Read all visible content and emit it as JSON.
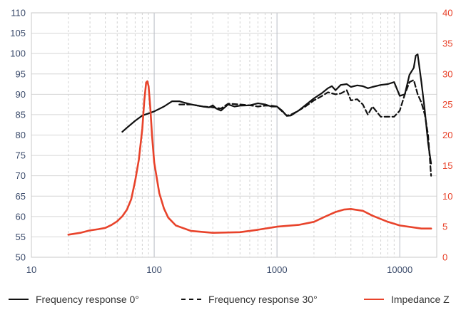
{
  "chart_data": {
    "type": "line",
    "x_scale": "log",
    "xlim": [
      10,
      20000
    ],
    "ylim_left": [
      50,
      110
    ],
    "ylim_right": [
      0,
      40
    ],
    "x_ticks": [
      "10",
      "100",
      "1000",
      "10000"
    ],
    "y_left_ticks": [
      "50",
      "55",
      "60",
      "65",
      "70",
      "75",
      "80",
      "85",
      "90",
      "95",
      "100",
      "105",
      "110"
    ],
    "y_right_ticks": [
      "0",
      "5",
      "10",
      "15",
      "20",
      "25",
      "30",
      "35",
      "40"
    ],
    "grid": true,
    "legend_position": "bottom",
    "series": [
      {
        "name": "Frequency response 0°",
        "axis": "left",
        "color": "#111111",
        "dash": "solid",
        "x": [
          55,
          60,
          70,
          80,
          90,
          100,
          120,
          140,
          160,
          200,
          250,
          280,
          300,
          320,
          350,
          400,
          450,
          500,
          600,
          700,
          800,
          900,
          1000,
          1100,
          1200,
          1300,
          1500,
          1700,
          2000,
          2300,
          2600,
          2800,
          3000,
          3300,
          3700,
          4000,
          4500,
          5000,
          5500,
          6000,
          7000,
          8000,
          9000,
          10000,
          11000,
          12000,
          13000,
          13500,
          14000,
          15000,
          16000,
          17000,
          18000
        ],
        "y": [
          80.8,
          81.8,
          83.5,
          84.8,
          85.3,
          85.8,
          87.0,
          88.3,
          88.3,
          87.5,
          87.0,
          86.8,
          87.3,
          86.5,
          86.0,
          87.5,
          87.0,
          87.2,
          87.3,
          87.8,
          87.5,
          87.0,
          87.0,
          86.0,
          84.7,
          84.8,
          86.0,
          87.3,
          89.0,
          90.2,
          91.5,
          92.0,
          91.0,
          92.3,
          92.5,
          91.8,
          92.2,
          92.0,
          91.5,
          91.8,
          92.3,
          92.5,
          93.0,
          89.6,
          90.0,
          94.8,
          96.5,
          99.5,
          99.8,
          93.0,
          86.0,
          78.0,
          73.0
        ]
      },
      {
        "name": "Frequency response 30°",
        "axis": "left",
        "color": "#111111",
        "dash": "dashed",
        "x": [
          160,
          200,
          250,
          300,
          350,
          400,
          500,
          600,
          700,
          800,
          900,
          1000,
          1100,
          1200,
          1300,
          1500,
          1700,
          2000,
          2300,
          2600,
          3000,
          3300,
          3700,
          4000,
          4500,
          5000,
          5500,
          6000,
          7000,
          8000,
          9000,
          10000,
          11000,
          12000,
          13000,
          14000,
          15000,
          16000,
          17000,
          18000
        ],
        "y": [
          87.5,
          87.5,
          87.0,
          86.8,
          86.5,
          87.7,
          87.5,
          87.3,
          87.0,
          87.2,
          87.2,
          87.0,
          85.8,
          84.8,
          85.0,
          86.0,
          87.0,
          88.5,
          89.5,
          90.5,
          90.0,
          90.2,
          91.0,
          88.5,
          88.8,
          87.5,
          85.0,
          87.0,
          84.5,
          84.5,
          84.5,
          86.0,
          90.0,
          93.0,
          93.5,
          90.0,
          88.0,
          85.0,
          80.0,
          70.0
        ]
      },
      {
        "name": "Impedance Z",
        "axis": "right",
        "color": "#e8432b",
        "dash": "solid",
        "x": [
          20,
          25,
          30,
          35,
          40,
          45,
          50,
          55,
          60,
          65,
          70,
          75,
          80,
          83,
          86,
          88,
          90,
          93,
          96,
          100,
          110,
          120,
          130,
          150,
          200,
          300,
          500,
          700,
          1000,
          1500,
          2000,
          2500,
          3000,
          3500,
          4000,
          5000,
          6000,
          8000,
          10000,
          15000,
          18000
        ],
        "y": [
          3.7,
          4.0,
          4.4,
          4.6,
          4.8,
          5.3,
          5.9,
          6.7,
          7.8,
          9.5,
          12.5,
          16.0,
          21.0,
          25.5,
          28.6,
          28.8,
          28.0,
          24.5,
          20.0,
          15.5,
          10.5,
          8.0,
          6.5,
          5.2,
          4.3,
          4.0,
          4.1,
          4.5,
          5.0,
          5.3,
          5.8,
          6.7,
          7.4,
          7.8,
          7.9,
          7.6,
          6.8,
          5.8,
          5.2,
          4.7,
          4.7
        ]
      }
    ]
  }
}
